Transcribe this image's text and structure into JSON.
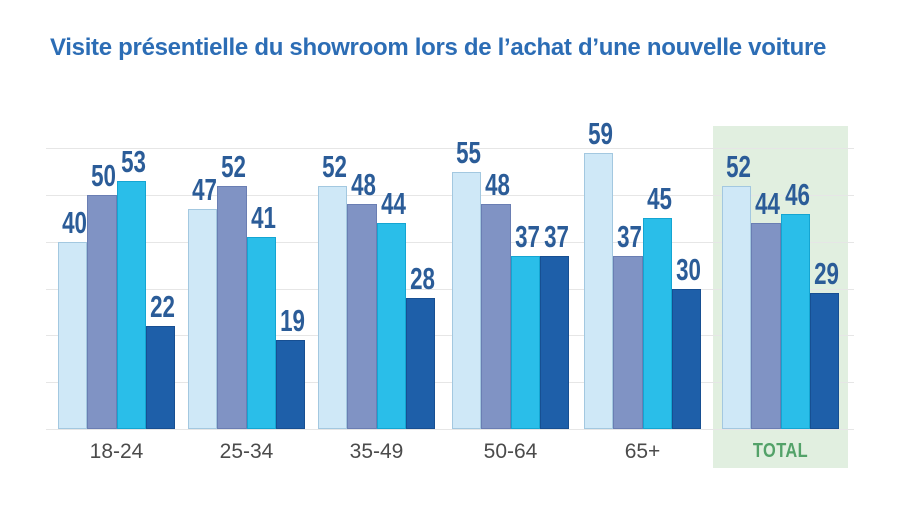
{
  "chart_data": {
    "type": "bar",
    "title": "Visite présentielle du showroom lors de l’achat d’une nouvelle voiture",
    "title_color": "#2c6db5",
    "categories": [
      "18-24",
      "25-34",
      "35-49",
      "50-64",
      "65+",
      "TOTAL"
    ],
    "series": [
      {
        "name": "light-blue",
        "color": "#cfe8f7",
        "border_color": "#a3c8e0",
        "values": [
          40,
          47,
          52,
          55,
          59,
          52
        ]
      },
      {
        "name": "slate-blue",
        "color": "#8093c4",
        "border_color": "#6a7eb3",
        "values": [
          50,
          52,
          48,
          48,
          37,
          44
        ]
      },
      {
        "name": "cyan",
        "color": "#2abee9",
        "border_color": "#14a5d2",
        "values": [
          53,
          41,
          44,
          37,
          45,
          46
        ]
      },
      {
        "name": "dark-blue",
        "color": "#1e5fa9",
        "border_color": "#174f92",
        "values": [
          22,
          19,
          28,
          37,
          30,
          29
        ]
      }
    ],
    "value_label_color": "#2b5c98",
    "ylim": [
      0,
      63
    ],
    "gridline_step": 10,
    "grid": "horizontal",
    "y_axis_labels": "none",
    "legend": "none",
    "highlight": {
      "category": "TOTAL",
      "panel_color": "#e1efe0",
      "label_color": "#53a269"
    }
  }
}
